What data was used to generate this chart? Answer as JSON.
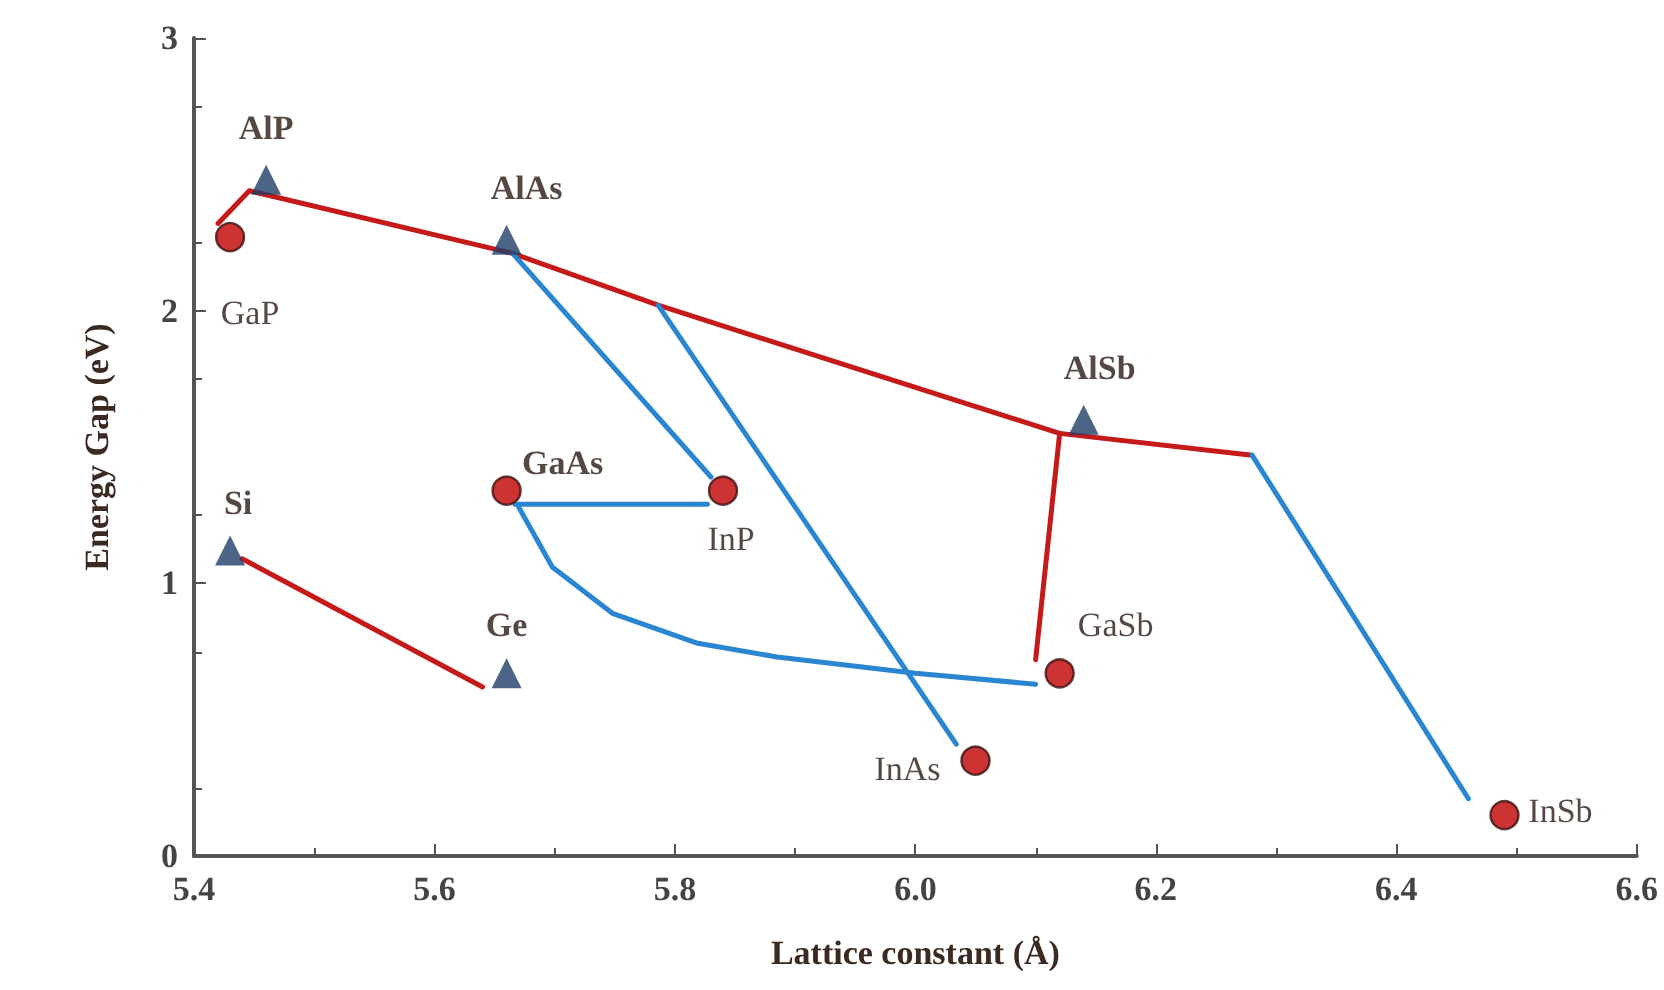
{
  "chart_data": {
    "type": "scatter",
    "xlabel": "Lattice constant (Å)",
    "ylabel": "Energy Gap (eV)",
    "xlim": [
      5.4,
      6.6
    ],
    "xticks": [
      5.4,
      5.6,
      5.8,
      {
        "value": 6,
        "label": "6.0"
      },
      6.2,
      6.4,
      6.6
    ],
    "ylim": [
      0,
      3
    ],
    "yticks": [
      0,
      1,
      2,
      3
    ],
    "grid": false,
    "series": [
      {
        "type": "line",
        "color": "#c41a1a",
        "marker": "none",
        "x": [
          5.42,
          5.446,
          5.665,
          5.786,
          6.12,
          6.28
        ],
        "values": [
          2.32,
          2.44,
          2.21,
          2.02,
          1.55,
          1.47
        ]
      },
      {
        "type": "line",
        "color": "#c41a1a",
        "marker": "none",
        "x": [
          6.12,
          6.1
        ],
        "values": [
          1.55,
          0.72
        ]
      },
      {
        "type": "line",
        "color": "#c41a1a",
        "marker": "none",
        "x": [
          5.44,
          5.64
        ],
        "values": [
          1.09,
          0.62
        ]
      },
      {
        "type": "line",
        "color": "#2a86d1",
        "marker": "none",
        "x": [
          5.665,
          5.83
        ],
        "values": [
          2.21,
          1.39
        ]
      },
      {
        "type": "line",
        "color": "#2a86d1",
        "marker": "none",
        "x": [
          5.667,
          5.827
        ],
        "values": [
          1.29,
          1.29
        ]
      },
      {
        "type": "line",
        "color": "#2a86d1",
        "marker": "none",
        "x": [
          5.786,
          6.034
        ],
        "values": [
          2.02,
          0.41
        ]
      },
      {
        "type": "line",
        "color": "#2a86d1",
        "marker": "none",
        "x": [
          5.67,
          5.698,
          5.748,
          5.819,
          5.885,
          6.0,
          6.1
        ],
        "values": [
          1.28,
          1.06,
          0.89,
          0.78,
          0.73,
          0.67,
          0.63
        ]
      },
      {
        "type": "line",
        "color": "#2a86d1",
        "marker": "none",
        "x": [
          6.28,
          6.46
        ],
        "values": [
          1.47,
          0.21
        ]
      },
      {
        "type": "scatter",
        "color": "#1f3d66",
        "marker": "triangle",
        "x": [
          5.46,
          5.66,
          6.14,
          5.43,
          5.66
        ],
        "values": [
          2.48,
          2.26,
          1.6,
          1.12,
          0.67
        ]
      },
      {
        "type": "scatter",
        "color": "#c00000",
        "marker": "circle",
        "x": [
          5.43,
          5.66,
          5.84,
          6.12,
          6.05,
          6.49
        ],
        "values": [
          2.27,
          1.34,
          1.34,
          0.67,
          0.35,
          0.15
        ]
      }
    ],
    "annotations": [
      {
        "text": "AlP",
        "x": 5.46,
        "y": 2.48
      },
      {
        "text": "GaP",
        "x": 5.43,
        "y": 2.27
      },
      {
        "text": "AlAs",
        "x": 5.66,
        "y": 2.26
      },
      {
        "text": "AlSb",
        "x": 6.14,
        "y": 1.6
      },
      {
        "text": "GaAs",
        "x": 5.66,
        "y": 1.34
      },
      {
        "text": "InP",
        "x": 5.84,
        "y": 1.34
      },
      {
        "text": "Si",
        "x": 5.43,
        "y": 1.12
      },
      {
        "text": "Ge",
        "x": 5.66,
        "y": 0.67
      },
      {
        "text": "GaSb",
        "x": 6.12,
        "y": 0.67
      },
      {
        "text": "InAs",
        "x": 6.05,
        "y": 0.35
      },
      {
        "text": "InSb",
        "x": 6.49,
        "y": 0.15
      }
    ]
  }
}
